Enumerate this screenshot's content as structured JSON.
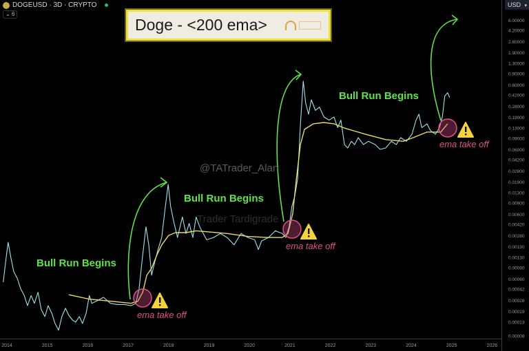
{
  "header": {
    "symbol": "DOGEUSD · 3D · CRYPTO",
    "indicator_count": "6",
    "currency": "USD"
  },
  "title_box": {
    "title": "Doge - <200 ema>"
  },
  "watermarks": [
    "@TATrader_Alan",
    "Trader Tardigrade"
  ],
  "annotations": {
    "bull_run_label": "Bull Run Begins",
    "ema_label": "ema take off",
    "warning_icon": "warning-triangle-icon"
  },
  "colors": {
    "price": "#9fe3ef",
    "ema": "#e8dc6a",
    "arrow": "#5fe34a",
    "circle": "#e0508a",
    "background": "#000000"
  },
  "chart_data": {
    "type": "line",
    "yscale": "log",
    "ylim": [
      6e-05,
      8
    ],
    "xlim": [
      2013.9,
      2026.3
    ],
    "grid": false,
    "x_ticks": [
      "2014",
      "2015",
      "2016",
      "2017",
      "2018",
      "2019",
      "2020",
      "2021",
      "2022",
      "2023",
      "2024",
      "2025",
      "2026"
    ],
    "y_ticks": [
      "6.00000",
      "4.20000",
      "2.80000",
      "1.90000",
      "1.30000",
      "0.90000",
      "0.60000",
      "0.42000",
      "0.28000",
      "0.19000",
      "0.13000",
      "0.09000",
      "0.06000",
      "0.04200",
      "0.02800",
      "0.01900",
      "0.01300",
      "0.00900",
      "0.00600",
      "0.00420",
      "0.00280",
      "0.00190",
      "0.00130",
      "0.00090",
      "0.00060",
      "0.00042",
      "0.00028",
      "0.00019",
      "0.00013",
      "0.00008"
    ],
    "series": [
      {
        "key": "price",
        "points": [
          [
            2013.91,
            0.00053
          ],
          [
            2013.97,
            0.0011
          ],
          [
            2014.03,
            0.0022
          ],
          [
            2014.1,
            0.00125
          ],
          [
            2014.17,
            0.00077
          ],
          [
            2014.26,
            0.0006
          ],
          [
            2014.34,
            0.00042
          ],
          [
            2014.43,
            0.00033
          ],
          [
            2014.51,
            0.00023
          ],
          [
            2014.6,
            0.00033
          ],
          [
            2014.68,
            0.00025
          ],
          [
            2014.77,
            0.00037
          ],
          [
            2014.85,
            0.0002
          ],
          [
            2014.94,
            0.000156
          ],
          [
            2015.02,
            0.00023
          ],
          [
            2015.11,
            0.000176
          ],
          [
            2015.19,
            0.000122
          ],
          [
            2015.28,
            9.6e-05
          ],
          [
            2015.36,
            0.000156
          ],
          [
            2015.45,
            0.00021
          ],
          [
            2015.53,
            0.000164
          ],
          [
            2015.62,
            0.000138
          ],
          [
            2015.7,
            0.000128
          ],
          [
            2015.79,
            0.000156
          ],
          [
            2015.87,
            0.000122
          ],
          [
            2015.96,
            0.000176
          ],
          [
            2016.04,
            0.00033
          ],
          [
            2016.1,
            0.00025
          ],
          [
            2016.21,
            0.00027
          ],
          [
            2016.39,
            0.00031
          ],
          [
            2016.56,
            0.00025
          ],
          [
            2016.73,
            0.00024
          ],
          [
            2016.9,
            0.00024
          ],
          [
            2017.07,
            0.00023
          ],
          [
            2017.19,
            0.00025
          ],
          [
            2017.27,
            0.00042
          ],
          [
            2017.36,
            0.0014
          ],
          [
            2017.44,
            0.0038
          ],
          [
            2017.51,
            0.002
          ],
          [
            2017.58,
            0.00068
          ],
          [
            2017.66,
            0.0011
          ],
          [
            2017.75,
            0.0018
          ],
          [
            2017.83,
            0.0026
          ],
          [
            2017.92,
            0.0079
          ],
          [
            2017.99,
            0.0172
          ],
          [
            2018.05,
            0.0079
          ],
          [
            2018.12,
            0.0048
          ],
          [
            2018.22,
            0.0026
          ],
          [
            2018.34,
            0.0054
          ],
          [
            2018.43,
            0.003
          ],
          [
            2018.51,
            0.0043
          ],
          [
            2018.6,
            0.0026
          ],
          [
            2018.68,
            0.0054
          ],
          [
            2018.77,
            0.0038
          ],
          [
            2018.94,
            0.0024
          ],
          [
            2019.11,
            0.0026
          ],
          [
            2019.28,
            0.003
          ],
          [
            2019.45,
            0.0026
          ],
          [
            2019.62,
            0.002
          ],
          [
            2019.79,
            0.003
          ],
          [
            2019.96,
            0.0026
          ],
          [
            2020.13,
            0.0024
          ],
          [
            2020.22,
            0.0017
          ],
          [
            2020.3,
            0.0023
          ],
          [
            2020.47,
            0.0026
          ],
          [
            2020.64,
            0.0033
          ],
          [
            2020.81,
            0.003
          ],
          [
            2020.9,
            0.0026
          ],
          [
            2020.98,
            0.0038
          ],
          [
            2021.05,
            0.0079
          ],
          [
            2021.12,
            0.0113
          ],
          [
            2021.19,
            0.021
          ],
          [
            2021.26,
            0.149
          ],
          [
            2021.33,
            0.68
          ],
          [
            2021.39,
            0.31
          ],
          [
            2021.46,
            0.21
          ],
          [
            2021.53,
            0.35
          ],
          [
            2021.63,
            0.24
          ],
          [
            2021.73,
            0.27
          ],
          [
            2021.84,
            0.19
          ],
          [
            2021.97,
            0.17
          ],
          [
            2022.09,
            0.19
          ],
          [
            2022.18,
            0.13
          ],
          [
            2022.26,
            0.17
          ],
          [
            2022.35,
            0.071
          ],
          [
            2022.43,
            0.063
          ],
          [
            2022.52,
            0.08
          ],
          [
            2022.6,
            0.071
          ],
          [
            2022.69,
            0.091
          ],
          [
            2022.82,
            0.071
          ],
          [
            2022.94,
            0.08
          ],
          [
            2023.11,
            0.071
          ],
          [
            2023.23,
            0.06
          ],
          [
            2023.37,
            0.063
          ],
          [
            2023.51,
            0.08
          ],
          [
            2023.63,
            0.071
          ],
          [
            2023.74,
            0.091
          ],
          [
            2023.88,
            0.08
          ],
          [
            2024.02,
            0.103
          ],
          [
            2024.12,
            0.17
          ],
          [
            2024.19,
            0.21
          ],
          [
            2024.26,
            0.13
          ],
          [
            2024.39,
            0.149
          ],
          [
            2024.48,
            0.116
          ],
          [
            2024.6,
            0.103
          ],
          [
            2024.7,
            0.13
          ],
          [
            2024.77,
            0.19
          ],
          [
            2024.83,
            0.4
          ],
          [
            2024.9,
            0.45
          ],
          [
            2024.95,
            0.38
          ]
        ]
      },
      {
        "key": "ema200",
        "points": [
          [
            2015.53,
            0.00034
          ],
          [
            2016.04,
            0.00029
          ],
          [
            2016.56,
            0.00027
          ],
          [
            2017.07,
            0.00025
          ],
          [
            2017.24,
            0.00027
          ],
          [
            2017.36,
            0.00037
          ],
          [
            2017.46,
            0.00068
          ],
          [
            2017.58,
            0.00087
          ],
          [
            2017.71,
            0.0014
          ],
          [
            2017.83,
            0.002
          ],
          [
            2018.0,
            0.0028
          ],
          [
            2018.17,
            0.0031
          ],
          [
            2018.43,
            0.0031
          ],
          [
            2018.68,
            0.0033
          ],
          [
            2018.94,
            0.0032
          ],
          [
            2019.45,
            0.003
          ],
          [
            2019.96,
            0.0027
          ],
          [
            2020.47,
            0.0026
          ],
          [
            2020.81,
            0.0026
          ],
          [
            2020.95,
            0.003
          ],
          [
            2021.07,
            0.0061
          ],
          [
            2021.16,
            0.021
          ],
          [
            2021.26,
            0.071
          ],
          [
            2021.36,
            0.122
          ],
          [
            2021.58,
            0.149
          ],
          [
            2021.84,
            0.156
          ],
          [
            2022.09,
            0.149
          ],
          [
            2022.35,
            0.128
          ],
          [
            2022.86,
            0.103
          ],
          [
            2023.37,
            0.085
          ],
          [
            2023.8,
            0.08
          ],
          [
            2024.05,
            0.091
          ],
          [
            2024.39,
            0.111
          ],
          [
            2024.73,
            0.111
          ],
          [
            2024.9,
            0.149
          ]
        ]
      }
    ]
  }
}
